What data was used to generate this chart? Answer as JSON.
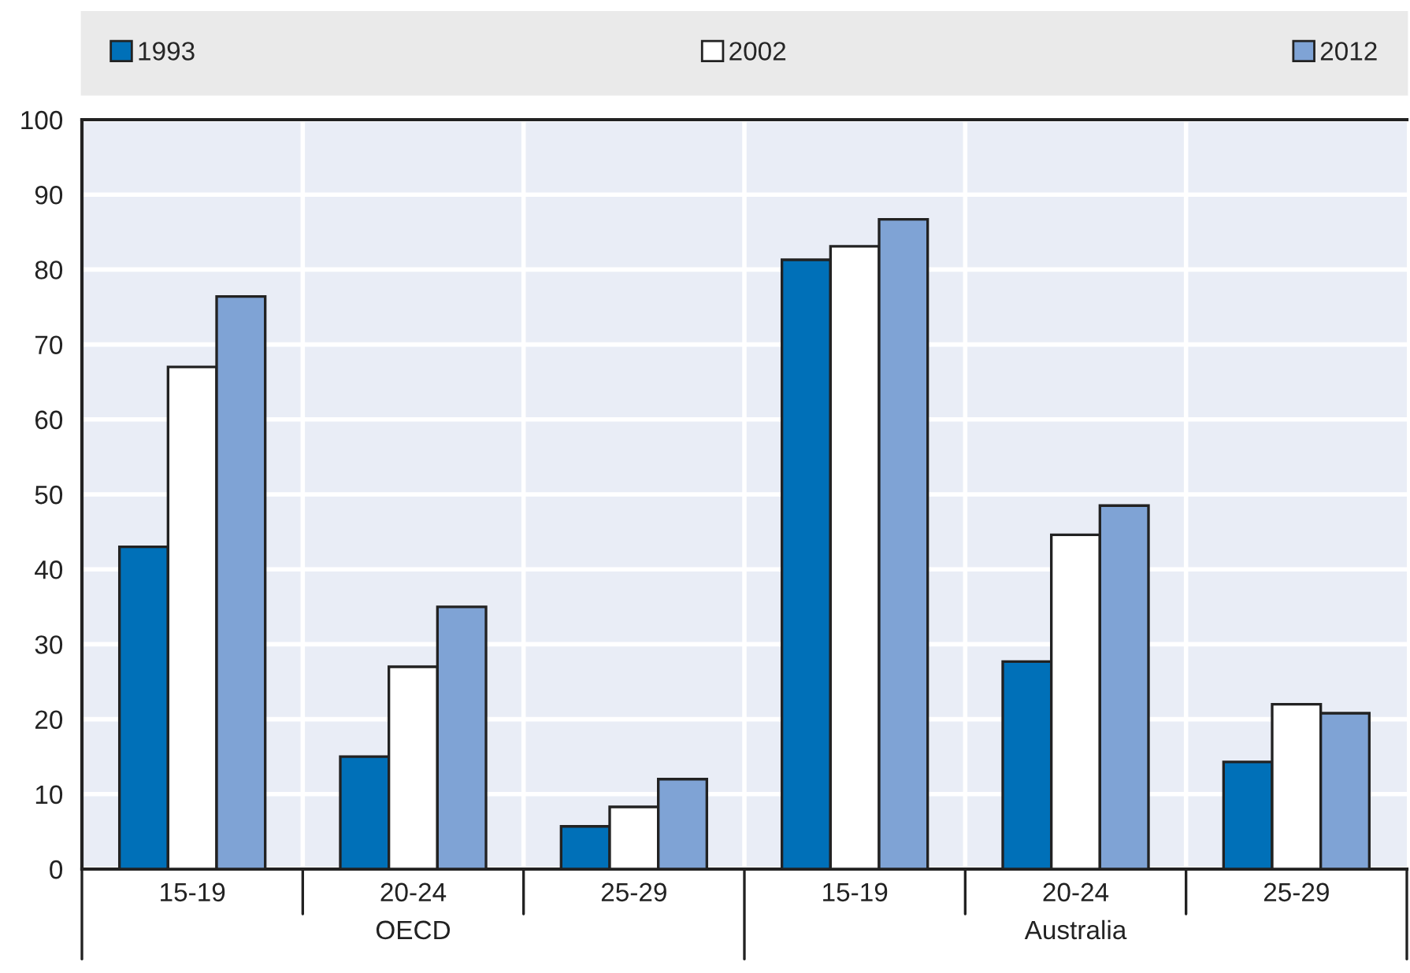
{
  "chart_data": {
    "type": "bar",
    "categories": [
      "15-19",
      "20-24",
      "25-29",
      "15-19",
      "20-24",
      "25-29"
    ],
    "series": [
      {
        "name": "1993",
        "color": "#0070b8",
        "values": [
          43,
          15,
          5.7,
          81.3,
          27.7,
          14.3
        ]
      },
      {
        "name": "2002",
        "color": "#ffffff",
        "values": [
          67,
          27,
          8.3,
          83.1,
          44.6,
          22
        ]
      },
      {
        "name": "2012",
        "color": "#7fa3d5",
        "values": [
          76.4,
          35,
          12,
          86.7,
          48.5,
          20.8
        ]
      }
    ],
    "annotations": [
      "OECD",
      "Australia"
    ],
    "ylim": [
      0,
      100
    ],
    "yticks": [
      0,
      10,
      20,
      30,
      40,
      50,
      60,
      70,
      80,
      90,
      100
    ],
    "grid": true,
    "legend": "top"
  }
}
